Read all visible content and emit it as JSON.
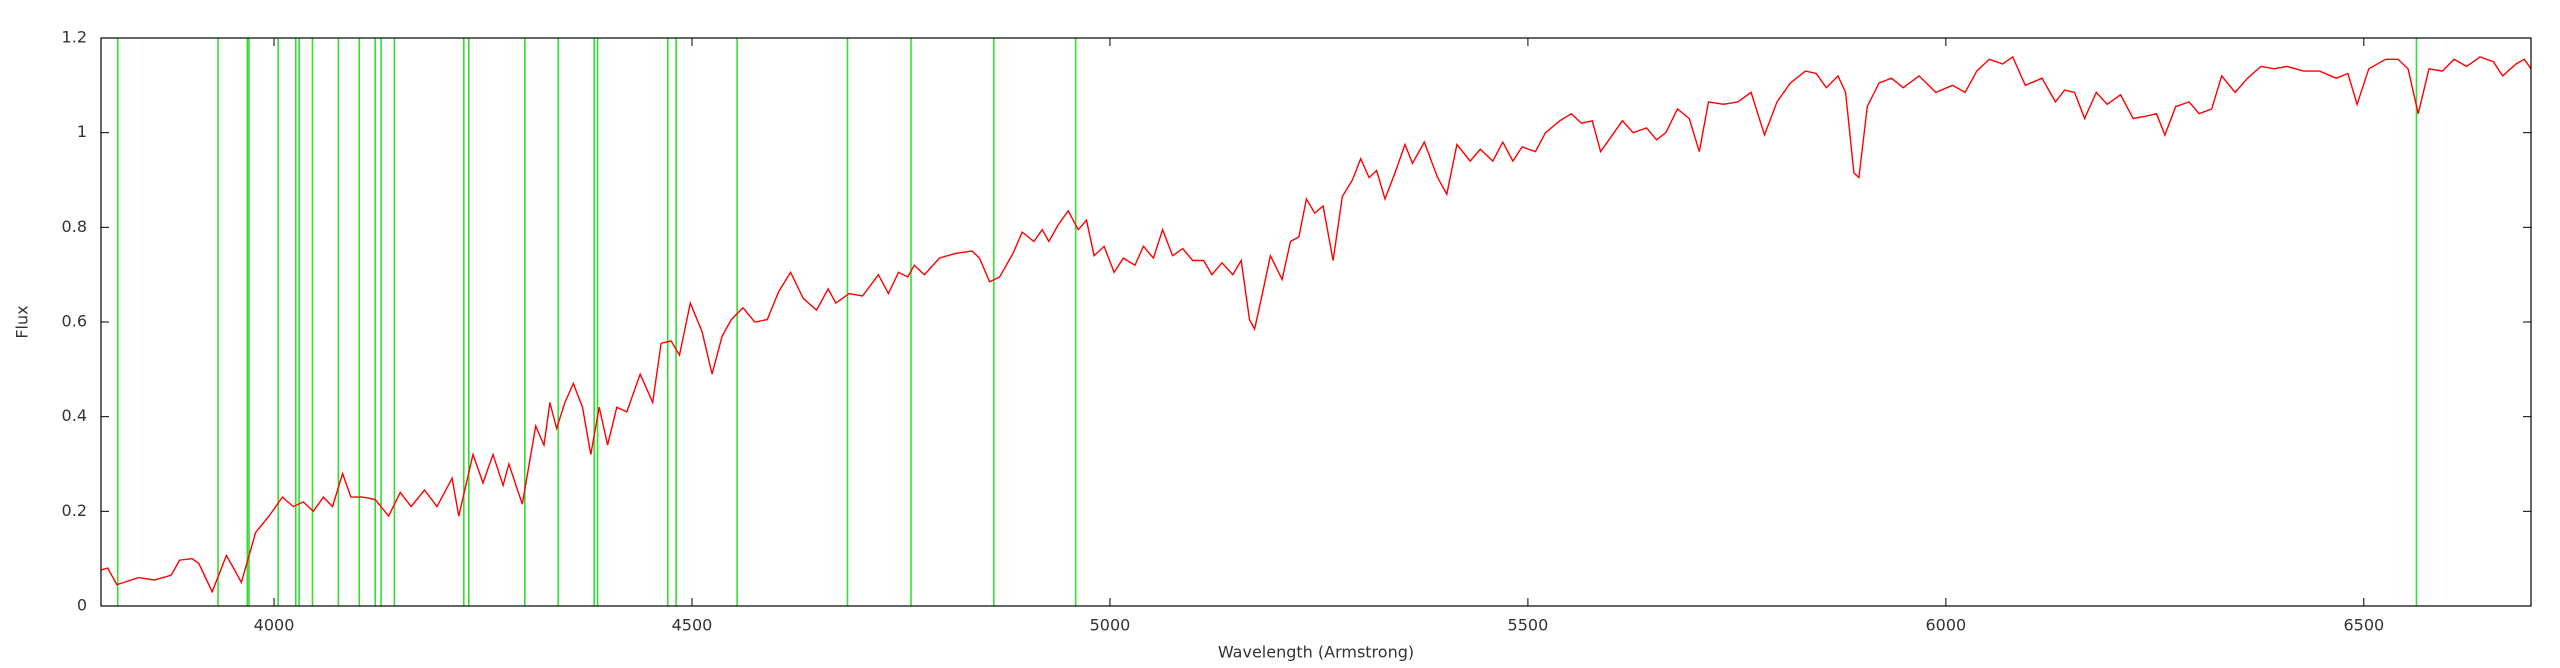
{
  "chart_data": {
    "type": "line",
    "xlabel": "Wavelength (Armstrong)",
    "ylabel": "Flux",
    "xlim": [
      3793,
      6700
    ],
    "ylim": [
      0,
      1.2
    ],
    "xticks": [
      4000,
      4500,
      5000,
      5500,
      6000,
      6500
    ],
    "yticks": [
      0,
      0.2,
      0.4,
      0.6,
      0.8,
      1,
      1.2
    ],
    "color": "#ff0000",
    "x": [
      3793,
      3801,
      3812,
      3838,
      3857,
      3877,
      3887,
      3902,
      3910,
      3926,
      3943,
      3961,
      3978,
      3994,
      4010,
      4023,
      4035,
      4047,
      4059,
      4070,
      4082,
      4092,
      4106,
      4121,
      4137,
      4151,
      4164,
      4180,
      4195,
      4213,
      4221,
      4238,
      4250,
      4262,
      4274,
      4281,
      4297,
      4313,
      4323,
      4330,
      4338,
      4348,
      4358,
      4369,
      4379,
      4389,
      4399,
      4410,
      4422,
      4438,
      4453,
      4463,
      4475,
      4485,
      4498,
      4512,
      4524,
      4536,
      4547,
      4561,
      4575,
      4590,
      4604,
      4618,
      4633,
      4649,
      4663,
      4672,
      4688,
      4704,
      4723,
      4735,
      4747,
      4758,
      4766,
      4778,
      4796,
      4815,
      4835,
      4844,
      4856,
      4868,
      4884,
      4895,
      4909,
      4919,
      4927,
      4938,
      4950,
      4962,
      4972,
      4981,
      4993,
      5005,
      5016,
      5030,
      5040,
      5052,
      5063,
      5075,
      5087,
      5099,
      5112,
      5122,
      5134,
      5147,
      5157,
      5167,
      5173,
      5183,
      5192,
      5206,
      5216,
      5226,
      5235,
      5245,
      5255,
      5267,
      5278,
      5290,
      5300,
      5310,
      5319,
      5329,
      5341,
      5353,
      5362,
      5376,
      5392,
      5403,
      5415,
      5431,
      5443,
      5458,
      5470,
      5482,
      5493,
      5509,
      5521,
      5538,
      5552,
      5564,
      5577,
      5587,
      5603,
      5613,
      5626,
      5642,
      5654,
      5665,
      5679,
      5693,
      5705,
      5716,
      5734,
      5751,
      5767,
      5783,
      5798,
      5814,
      5832,
      5845,
      5857,
      5871,
      5880,
      5890,
      5896,
      5906,
      5920,
      5935,
      5949,
      5968,
      5988,
      6008,
      6023,
      6037,
      6052,
      6068,
      6080,
      6095,
      6115,
      6131,
      6142,
      6154,
      6166,
      6180,
      6193,
      6209,
      6224,
      6240,
      6252,
      6262,
      6275,
      6291,
      6303,
      6318,
      6330,
      6346,
      6361,
      6377,
      6393,
      6408,
      6428,
      6447,
      6467,
      6481,
      6492,
      6506,
      6526,
      6541,
      6553,
      6565,
      6578,
      6594,
      6608,
      6623,
      6639,
      6655,
      6666,
      6682,
      6692,
      6700
    ],
    "values": [
      0.076,
      0.08,
      0.045,
      0.06,
      0.055,
      0.065,
      0.097,
      0.1,
      0.09,
      0.03,
      0.107,
      0.05,
      0.155,
      0.19,
      0.23,
      0.21,
      0.22,
      0.2,
      0.23,
      0.21,
      0.28,
      0.23,
      0.23,
      0.225,
      0.19,
      0.24,
      0.21,
      0.245,
      0.21,
      0.27,
      0.19,
      0.32,
      0.26,
      0.32,
      0.255,
      0.3,
      0.215,
      0.38,
      0.34,
      0.43,
      0.375,
      0.43,
      0.47,
      0.42,
      0.32,
      0.42,
      0.34,
      0.42,
      0.41,
      0.49,
      0.43,
      0.555,
      0.56,
      0.53,
      0.64,
      0.58,
      0.49,
      0.57,
      0.605,
      0.63,
      0.6,
      0.605,
      0.665,
      0.705,
      0.65,
      0.625,
      0.67,
      0.64,
      0.66,
      0.655,
      0.7,
      0.66,
      0.705,
      0.695,
      0.72,
      0.7,
      0.735,
      0.745,
      0.75,
      0.735,
      0.685,
      0.695,
      0.745,
      0.79,
      0.77,
      0.795,
      0.77,
      0.805,
      0.835,
      0.795,
      0.815,
      0.74,
      0.76,
      0.705,
      0.735,
      0.72,
      0.76,
      0.735,
      0.795,
      0.74,
      0.755,
      0.73,
      0.73,
      0.7,
      0.725,
      0.7,
      0.73,
      0.605,
      0.585,
      0.665,
      0.74,
      0.69,
      0.77,
      0.78,
      0.86,
      0.83,
      0.845,
      0.73,
      0.865,
      0.9,
      0.945,
      0.905,
      0.92,
      0.86,
      0.915,
      0.975,
      0.935,
      0.98,
      0.905,
      0.87,
      0.975,
      0.94,
      0.965,
      0.94,
      0.98,
      0.94,
      0.97,
      0.96,
      1.0,
      1.025,
      1.04,
      1.02,
      1.025,
      0.96,
      1.0,
      1.025,
      1.0,
      1.01,
      0.985,
      1.0,
      1.05,
      1.03,
      0.96,
      1.065,
      1.06,
      1.065,
      1.085,
      0.995,
      1.065,
      1.105,
      1.13,
      1.125,
      1.095,
      1.12,
      1.085,
      0.915,
      0.905,
      1.055,
      1.105,
      1.115,
      1.095,
      1.12,
      1.085,
      1.1,
      1.085,
      1.13,
      1.155,
      1.145,
      1.16,
      1.1,
      1.115,
      1.065,
      1.09,
      1.085,
      1.03,
      1.085,
      1.06,
      1.08,
      1.03,
      1.035,
      1.04,
      0.995,
      1.055,
      1.065,
      1.04,
      1.05,
      1.12,
      1.085,
      1.115,
      1.14,
      1.135,
      1.14,
      1.13,
      1.13,
      1.115,
      1.125,
      1.06,
      1.135,
      1.155,
      1.155,
      1.135,
      1.04,
      1.135,
      1.13,
      1.155,
      1.14,
      1.16,
      1.15,
      1.12,
      1.145,
      1.155,
      1.135
    ],
    "marker_lines": {
      "color": "#33dd33",
      "x": [
        3813,
        3933,
        3968,
        3970,
        4005,
        4026,
        4030,
        4046,
        4077,
        4102,
        4121,
        4128,
        4144,
        4227,
        4233,
        4300,
        4340,
        4383,
        4387,
        4471,
        4481,
        4554,
        4686,
        4762,
        4861,
        4959,
        6563
      ]
    }
  }
}
